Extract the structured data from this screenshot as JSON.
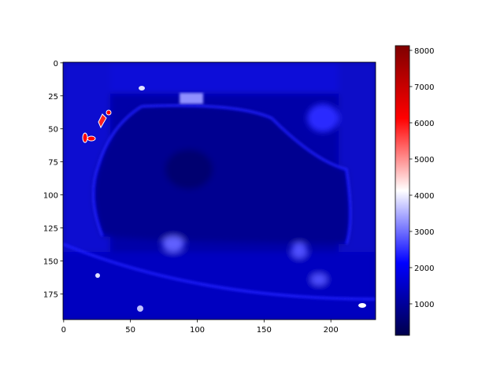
{
  "chart_data": {
    "type": "heatmap",
    "xlim": [
      -0.5,
      233.5
    ],
    "xticks": [
      0,
      50,
      100,
      150,
      200
    ],
    "ylim": [
      194.5,
      -0.5
    ],
    "yticks": [
      0,
      25,
      50,
      75,
      100,
      125,
      150,
      175
    ],
    "colorbar": {
      "lim": [
        130,
        8130
      ],
      "ticks": [
        1000,
        2000,
        3000,
        4000,
        5000,
        6000,
        7000,
        8000
      ],
      "colormap": [
        "#00004c",
        "#0000ff",
        "#ffffff",
        "#ff0000",
        "#7f0000"
      ]
    }
  }
}
